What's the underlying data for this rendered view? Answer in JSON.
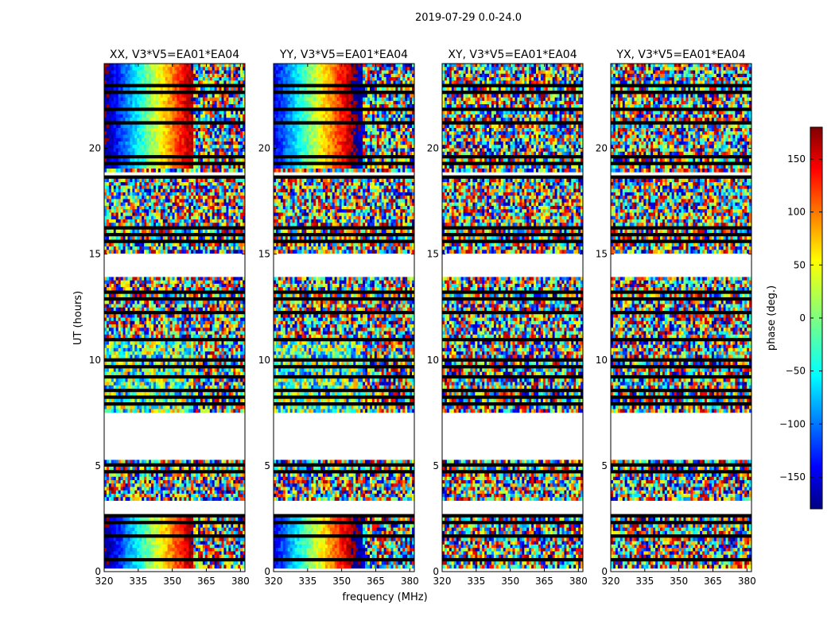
{
  "figure": {
    "suptitle": "2019-07-29 0.0-24.0"
  },
  "chart_data": {
    "type": "heatmap",
    "x": {
      "label": "frequency (MHz)",
      "lim": [
        320,
        382
      ],
      "ticks": [
        320,
        335,
        350,
        365,
        380
      ],
      "tick_labels": [
        "320",
        "335",
        "350",
        "365",
        "380"
      ]
    },
    "y": {
      "label": "UT (hours)",
      "lim": [
        0,
        24
      ],
      "ticks": [
        0,
        5,
        10,
        15,
        20
      ],
      "tick_labels": [
        "0",
        "5",
        "10",
        "15",
        "20"
      ]
    },
    "colorbar": {
      "label": "phase (deg.)",
      "range": [
        -180,
        180
      ],
      "ticks": [
        -150,
        -100,
        -50,
        0,
        50,
        100,
        150
      ],
      "tick_labels": [
        "−150",
        "−100",
        "−50",
        "0",
        "50",
        "100",
        "150"
      ],
      "colormap": "jet"
    },
    "panels": [
      {
        "title": "XX, V3*V5=EA01*EA04",
        "signal": "coherent"
      },
      {
        "title": "YY, V3*V5=EA01*EA04",
        "signal": "coherent"
      },
      {
        "title": "XY, V3*V5=EA01*EA04",
        "signal": "noise"
      },
      {
        "title": "YX, V3*V5=EA01*EA04",
        "signal": "noise"
      }
    ],
    "flagged_ut_ranges": [
      [
        23.15,
        23.25
      ],
      [
        22.95,
        23.0
      ],
      [
        22.6,
        22.7
      ],
      [
        21.75,
        21.85
      ],
      [
        21.15,
        21.25
      ],
      [
        20.3,
        20.35
      ],
      [
        19.55,
        19.65
      ],
      [
        19.2,
        19.3
      ],
      [
        18.85,
        18.95
      ],
      [
        18.55,
        18.65
      ],
      [
        16.2,
        16.25
      ],
      [
        15.9,
        15.95
      ],
      [
        15.6,
        15.7
      ],
      [
        15.35,
        15.4
      ],
      [
        14.95,
        15.05
      ],
      [
        13.9,
        14.0
      ],
      [
        13.55,
        13.6
      ],
      [
        13.1,
        13.2
      ],
      [
        12.85,
        12.9
      ],
      [
        12.2,
        12.3
      ],
      [
        11.7,
        11.75
      ],
      [
        11.15,
        11.25
      ],
      [
        10.95,
        11.0
      ],
      [
        10.5,
        10.6
      ],
      [
        9.95,
        10.0
      ],
      [
        9.65,
        9.7
      ],
      [
        9.2,
        9.3
      ],
      [
        8.55,
        8.65
      ],
      [
        8.2,
        8.25
      ],
      [
        7.85,
        7.95
      ],
      [
        5.0,
        5.05
      ],
      [
        4.7,
        4.75
      ],
      [
        4.45,
        4.5
      ],
      [
        4.25,
        4.35
      ],
      [
        2.6,
        2.65
      ],
      [
        2.3,
        2.35
      ],
      [
        2.05,
        2.15
      ],
      [
        1.6,
        1.7
      ],
      [
        1.3,
        1.35
      ],
      [
        0.9,
        1.0
      ],
      [
        0.55,
        0.6
      ],
      [
        0.3,
        0.35
      ],
      [
        0.1,
        0.15
      ]
    ],
    "blank_ut_ranges": [
      [
        18.65,
        18.85
      ],
      [
        14.0,
        15.0
      ],
      [
        7.5,
        5.2
      ],
      [
        3.3,
        2.7
      ],
      [
        0.0,
        0.08
      ]
    ]
  }
}
